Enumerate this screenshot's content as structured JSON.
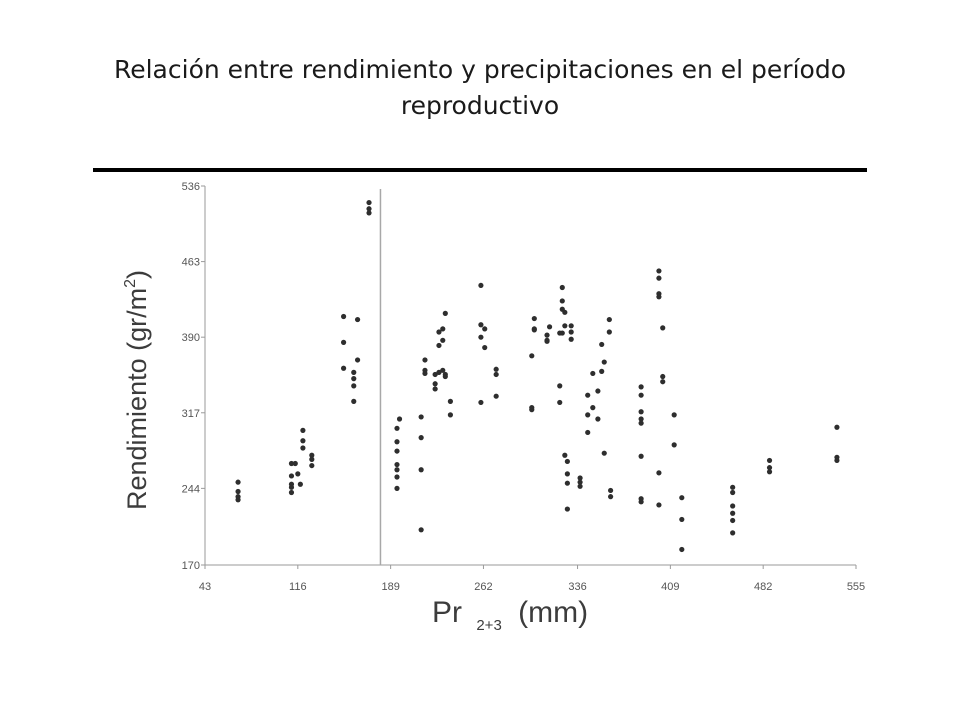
{
  "title": "Relación entre rendimiento y precipitaciones en el período reproductivo",
  "chart_data": {
    "type": "scatter",
    "ylabel_main": "Rendimiento (gr/m",
    "ylabel_sup": "2",
    "ylabel_end": ")",
    "xlabel_main": "Pr",
    "xlabel_sub": "2+3",
    "xlabel_end": "(mm)",
    "xlim": [
      43,
      555
    ],
    "ylim": [
      170,
      536
    ],
    "xticks": [
      43,
      116,
      189,
      262,
      336,
      409,
      482,
      555
    ],
    "yticks": [
      170,
      244,
      317,
      390,
      463,
      536
    ],
    "vline_x": 181,
    "points": [
      [
        69,
        250
      ],
      [
        69,
        241
      ],
      [
        69,
        236
      ],
      [
        69,
        233
      ],
      [
        111,
        268
      ],
      [
        111,
        256
      ],
      [
        111,
        248
      ],
      [
        111,
        245
      ],
      [
        111,
        240
      ],
      [
        114,
        268
      ],
      [
        116,
        258
      ],
      [
        118,
        248
      ],
      [
        120,
        283
      ],
      [
        120,
        290
      ],
      [
        120,
        300
      ],
      [
        127,
        276
      ],
      [
        127,
        272
      ],
      [
        127,
        266
      ],
      [
        152,
        410
      ],
      [
        152,
        385
      ],
      [
        152,
        360
      ],
      [
        160,
        356
      ],
      [
        160,
        350
      ],
      [
        160,
        343
      ],
      [
        160,
        328
      ],
      [
        163,
        407
      ],
      [
        163,
        368
      ],
      [
        172,
        510
      ],
      [
        172,
        514
      ],
      [
        172,
        520
      ],
      [
        194,
        302
      ],
      [
        194,
        289
      ],
      [
        194,
        280
      ],
      [
        194,
        267
      ],
      [
        194,
        262
      ],
      [
        194,
        255
      ],
      [
        194,
        244
      ],
      [
        196,
        311
      ],
      [
        213,
        313
      ],
      [
        213,
        293
      ],
      [
        213,
        262
      ],
      [
        213,
        204
      ],
      [
        216,
        358
      ],
      [
        216,
        355
      ],
      [
        216,
        368
      ],
      [
        224,
        354
      ],
      [
        224,
        345
      ],
      [
        224,
        340
      ],
      [
        227,
        395
      ],
      [
        227,
        382
      ],
      [
        227,
        356
      ],
      [
        230,
        398
      ],
      [
        230,
        387
      ],
      [
        230,
        358
      ],
      [
        232,
        413
      ],
      [
        232,
        354
      ],
      [
        232,
        352
      ],
      [
        236,
        328
      ],
      [
        236,
        315
      ],
      [
        260,
        440
      ],
      [
        260,
        402
      ],
      [
        260,
        390
      ],
      [
        260,
        327
      ],
      [
        263,
        398
      ],
      [
        263,
        380
      ],
      [
        272,
        359
      ],
      [
        272,
        354
      ],
      [
        272,
        333
      ],
      [
        300,
        322
      ],
      [
        300,
        320
      ],
      [
        300,
        372
      ],
      [
        302,
        397
      ],
      [
        302,
        408
      ],
      [
        302,
        398
      ],
      [
        312,
        392
      ],
      [
        312,
        387
      ],
      [
        312,
        386
      ],
      [
        314,
        400
      ],
      [
        322,
        343
      ],
      [
        322,
        327
      ],
      [
        322,
        394
      ],
      [
        324,
        438
      ],
      [
        324,
        425
      ],
      [
        324,
        417
      ],
      [
        324,
        394
      ],
      [
        326,
        414
      ],
      [
        326,
        401
      ],
      [
        326,
        276
      ],
      [
        328,
        270
      ],
      [
        328,
        258
      ],
      [
        328,
        249
      ],
      [
        328,
        224
      ],
      [
        331,
        401
      ],
      [
        331,
        395
      ],
      [
        331,
        388
      ],
      [
        338,
        254
      ],
      [
        338,
        250
      ],
      [
        338,
        246
      ],
      [
        344,
        298
      ],
      [
        344,
        315
      ],
      [
        344,
        334
      ],
      [
        348,
        322
      ],
      [
        348,
        355
      ],
      [
        352,
        311
      ],
      [
        352,
        338
      ],
      [
        355,
        357
      ],
      [
        355,
        383
      ],
      [
        357,
        366
      ],
      [
        357,
        278
      ],
      [
        361,
        395
      ],
      [
        361,
        407
      ],
      [
        362,
        242
      ],
      [
        362,
        236
      ],
      [
        386,
        342
      ],
      [
        386,
        334
      ],
      [
        386,
        318
      ],
      [
        386,
        311
      ],
      [
        386,
        307
      ],
      [
        386,
        234
      ],
      [
        386,
        231
      ],
      [
        386,
        275
      ],
      [
        400,
        454
      ],
      [
        400,
        447
      ],
      [
        400,
        432
      ],
      [
        400,
        429
      ],
      [
        400,
        259
      ],
      [
        400,
        228
      ],
      [
        403,
        399
      ],
      [
        403,
        352
      ],
      [
        403,
        347
      ],
      [
        412,
        315
      ],
      [
        412,
        286
      ],
      [
        418,
        235
      ],
      [
        418,
        214
      ],
      [
        418,
        185
      ],
      [
        458,
        245
      ],
      [
        458,
        240
      ],
      [
        458,
        227
      ],
      [
        458,
        220
      ],
      [
        458,
        213
      ],
      [
        458,
        201
      ],
      [
        487,
        271
      ],
      [
        487,
        264
      ],
      [
        487,
        260
      ],
      [
        540,
        303
      ],
      [
        540,
        274
      ],
      [
        540,
        271
      ]
    ]
  }
}
